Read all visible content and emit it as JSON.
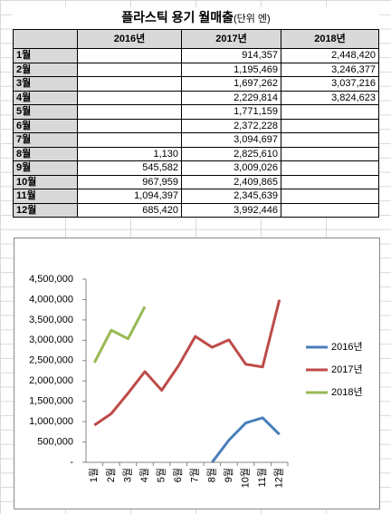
{
  "table": {
    "title": "플라스틱 용기 월매출",
    "unit": "(단위 엔)",
    "header": [
      "2016년",
      "2017년",
      "2018년"
    ],
    "rows": [
      [
        "1월",
        null,
        "914,357",
        "2,448,420"
      ],
      [
        "2월",
        null,
        "1,195,469",
        "3,246,377"
      ],
      [
        "3월",
        null,
        "1,697,262",
        "3,037,216"
      ],
      [
        "4월",
        null,
        "2,229,814",
        "3,824,623"
      ],
      [
        "5월",
        null,
        "1,771,159",
        null
      ],
      [
        "6월",
        null,
        "2,372,228",
        null
      ],
      [
        "7월",
        null,
        "3,094,697",
        null
      ],
      [
        "8월",
        "1,130",
        "2,825,610",
        null
      ],
      [
        "9월",
        "545,582",
        "3,009,026",
        null
      ],
      [
        "10월",
        "967,959",
        "2,409,865",
        null
      ],
      [
        "11월",
        "1,094,397",
        "2,345,639",
        null
      ],
      [
        "12월",
        "685,420",
        "3,992,446",
        null
      ]
    ]
  },
  "chart_data": {
    "type": "line",
    "categories": [
      "1월",
      "2월",
      "3월",
      "4월",
      "5월",
      "6월",
      "7월",
      "8월",
      "9월",
      "10월",
      "11월",
      "12월"
    ],
    "series": [
      {
        "name": "2016년",
        "color": "#4a7ebb",
        "values": [
          null,
          null,
          null,
          null,
          null,
          null,
          null,
          1130,
          545582,
          967959,
          1094397,
          685420
        ]
      },
      {
        "name": "2017년",
        "color": "#be4b48",
        "values": [
          914357,
          1195469,
          1697262,
          2229814,
          1771159,
          2372228,
          3094697,
          2825610,
          3009026,
          2409865,
          2345639,
          3992446
        ]
      },
      {
        "name": "2018년",
        "color": "#98b954",
        "values": [
          2448420,
          3246377,
          3037216,
          3824623,
          null,
          null,
          null,
          null,
          null,
          null,
          null,
          null
        ]
      }
    ],
    "ylim": [
      0,
      4500000
    ],
    "yticks": [
      {
        "value": 0,
        "label": "-"
      },
      {
        "value": 500000,
        "label": "500,000"
      },
      {
        "value": 1000000,
        "label": "1,000,000"
      },
      {
        "value": 1500000,
        "label": "1,500,000"
      },
      {
        "value": 2000000,
        "label": "2,000,000"
      },
      {
        "value": 2500000,
        "label": "2,500,000"
      },
      {
        "value": 3000000,
        "label": "3,000,000"
      },
      {
        "value": 3500000,
        "label": "3,500,000"
      },
      {
        "value": 4000000,
        "label": "4,000,000"
      },
      {
        "value": 4500000,
        "label": "4,500,000"
      }
    ],
    "grid": false,
    "legend": "right"
  }
}
